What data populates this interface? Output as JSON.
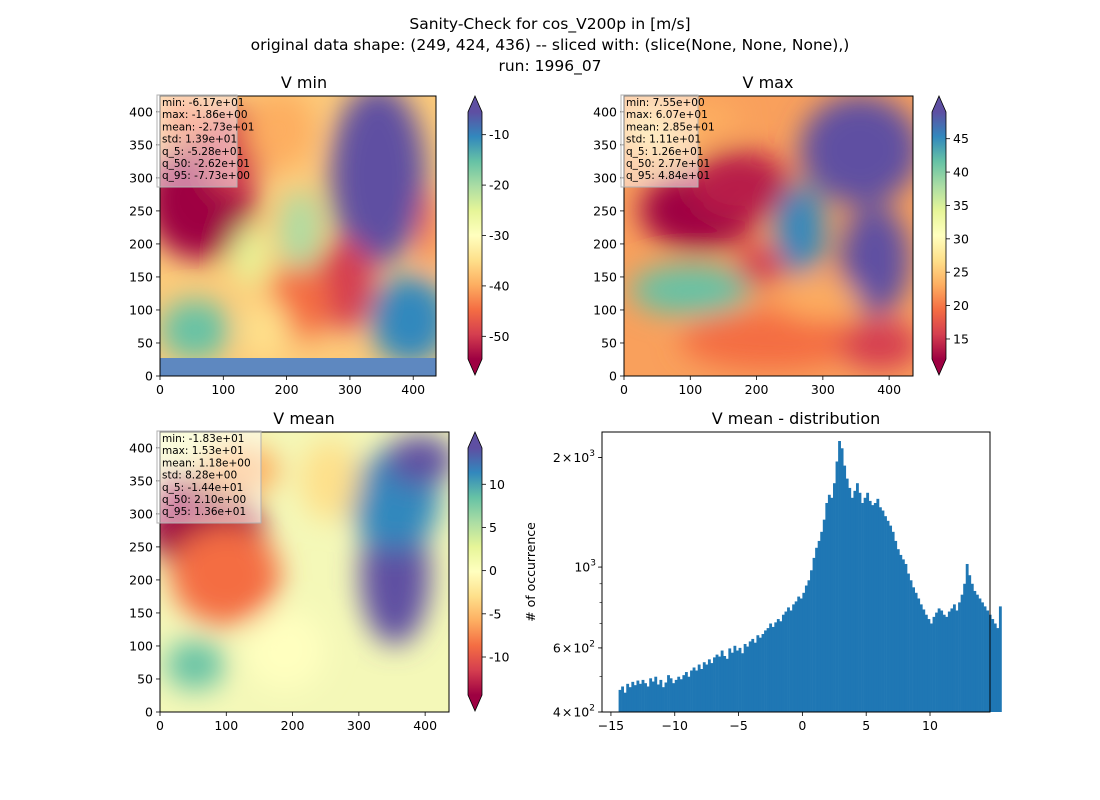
{
  "figure": {
    "title_lines": [
      "Sanity-Check for cos_V200p in [m/s]",
      "original data shape: (249, 424, 436) -- sliced with: (slice(None, None, None),)",
      "run: 1996_07"
    ]
  },
  "chart_data": [
    {
      "type": "heatmap",
      "title": "V min",
      "xlim": [
        0,
        436
      ],
      "ylim": [
        0,
        424
      ],
      "xticks": [
        "0",
        "100",
        "200",
        "300",
        "400"
      ],
      "yticks": [
        "0",
        "50",
        "100",
        "150",
        "200",
        "250",
        "300",
        "350",
        "400"
      ],
      "colormap": "Spectral",
      "colorbar": {
        "range": [
          -54.5,
          -5.5
        ],
        "ticks": [
          "-50",
          "-40",
          "-30",
          "-20",
          "-10"
        ],
        "tick_values": [
          -50,
          -40,
          -30,
          -20,
          -10
        ]
      },
      "stats": [
        "min: -6.17e+01",
        "max: -1.86e+00",
        "mean: -2.73e+01",
        "std: 1.39e+01",
        "q_5: -5.28e+01",
        "q_50: -2.62e+01",
        "q_95: -7.73e+00"
      ]
    },
    {
      "type": "heatmap",
      "title": "V max",
      "xlim": [
        0,
        436
      ],
      "ylim": [
        0,
        424
      ],
      "xticks": [
        "0",
        "100",
        "200",
        "300",
        "400"
      ],
      "yticks": [
        "0",
        "50",
        "100",
        "150",
        "200",
        "250",
        "300",
        "350",
        "400"
      ],
      "colormap": "Spectral",
      "colorbar": {
        "range": [
          12,
          49
        ],
        "ticks": [
          "15",
          "20",
          "25",
          "30",
          "35",
          "40",
          "45"
        ],
        "tick_values": [
          15,
          20,
          25,
          30,
          35,
          40,
          45
        ]
      },
      "stats": [
        "min: 7.55e+00",
        "max: 6.07e+01",
        "mean: 2.85e+01",
        "std: 1.11e+01",
        "q_5: 1.26e+01",
        "q_50: 2.77e+01",
        "q_95: 4.84e+01"
      ]
    },
    {
      "type": "heatmap",
      "title": "V mean",
      "xlim": [
        0,
        436
      ],
      "ylim": [
        0,
        424
      ],
      "xticks": [
        "0",
        "100",
        "200",
        "300",
        "400"
      ],
      "yticks": [
        "0",
        "50",
        "100",
        "150",
        "200",
        "250",
        "300",
        "350",
        "400"
      ],
      "colormap": "Spectral",
      "colorbar": {
        "range": [
          -14.4,
          14.2
        ],
        "ticks": [
          "-10",
          "-5",
          "0",
          "5",
          "10"
        ],
        "tick_values": [
          -10,
          -5,
          0,
          5,
          10
        ]
      },
      "stats": [
        "min: -1.83e+01",
        "max: 1.53e+01",
        "mean: 1.18e+00",
        "std: 8.28e+00",
        "q_5: -1.44e+01",
        "q_50: 2.10e+00",
        "q_95: 1.36e+01"
      ]
    },
    {
      "type": "bar",
      "title": "V mean - distribution",
      "ylabel": "# of occurrence",
      "yscale": "log",
      "xlim": [
        -15.7,
        14.7
      ],
      "ylim": [
        400,
        2350
      ],
      "xticks": [
        "−15",
        "−10",
        "−5",
        "0",
        "5",
        "10"
      ],
      "xtick_values": [
        -15,
        -10,
        -5,
        0,
        5,
        10
      ],
      "yticks": [
        {
          "base": "4",
          "value": 400
        },
        {
          "base": "6",
          "value": 600
        },
        {
          "base": "",
          "value": 1000
        },
        {
          "base": "2",
          "value": 2000
        }
      ],
      "ytick_times": "×",
      "ytick_exp_base": "10",
      "ytick_exps": [
        "2",
        "2",
        "3",
        "3"
      ],
      "bin_start": -14.4,
      "bin_width": 0.2,
      "color": "#1f77b4",
      "values": [
        460,
        470,
        452,
        478,
        468,
        484,
        474,
        488,
        478,
        490,
        480,
        470,
        495,
        485,
        500,
        476,
        490,
        468,
        482,
        505,
        495,
        480,
        490,
        500,
        492,
        505,
        515,
        500,
        520,
        530,
        520,
        540,
        525,
        548,
        540,
        558,
        545,
        565,
        575,
        568,
        590,
        570,
        560,
        598,
        582,
        608,
        590,
        600,
        580,
        615,
        605,
        625,
        635,
        620,
        650,
        640,
        655,
        670,
        680,
        700,
        685,
        705,
        720,
        710,
        740,
        755,
        775,
        760,
        790,
        805,
        830,
        820,
        850,
        890,
        920,
        980,
        1060,
        1130,
        1180,
        1250,
        1350,
        1500,
        1580,
        1550,
        1700,
        1950,
        2220,
        2120,
        1900,
        1750,
        1650,
        1550,
        1620,
        1700,
        1600,
        1500,
        1550,
        1600,
        1520,
        1480,
        1500,
        1540,
        1460,
        1430,
        1380,
        1340,
        1300,
        1250,
        1180,
        1120,
        1080,
        1050,
        1020,
        960,
        920,
        880,
        850,
        820,
        790,
        765,
        740,
        720,
        700,
        730,
        750,
        770,
        760,
        740,
        730,
        755,
        770,
        790,
        760,
        800,
        840,
        900,
        1020,
        950,
        900,
        860,
        840,
        820,
        800,
        780,
        760,
        740,
        720,
        700,
        680,
        780
      ]
    }
  ]
}
